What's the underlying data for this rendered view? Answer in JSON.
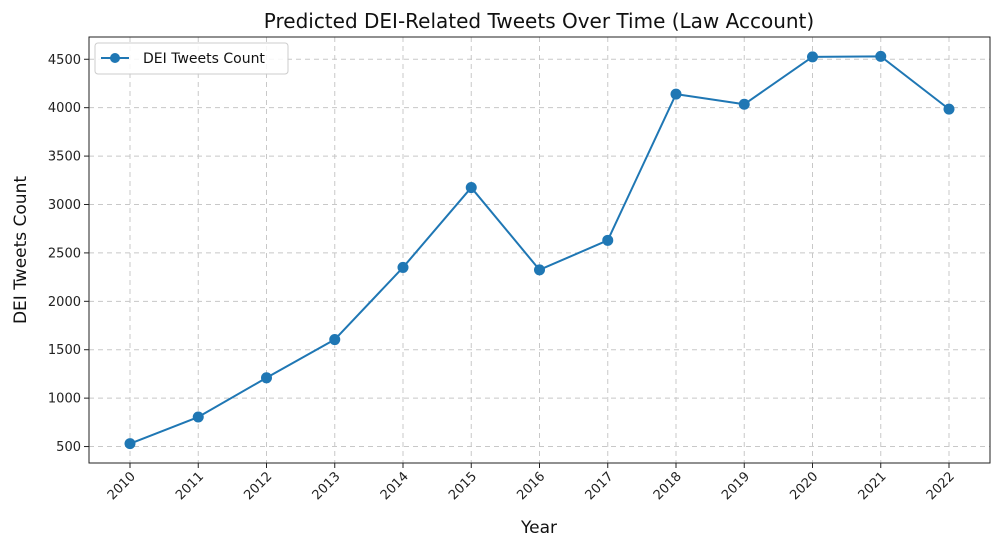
{
  "chart_data": {
    "type": "line",
    "title": "Predicted DEI-Related Tweets Over Time (Law Account)",
    "xlabel": "Year",
    "ylabel": "DEI Tweets Count",
    "categories": [
      "2010",
      "2011",
      "2012",
      "2013",
      "2014",
      "2015",
      "2016",
      "2017",
      "2018",
      "2019",
      "2020",
      "2021",
      "2022"
    ],
    "yticks": [
      500,
      1000,
      1500,
      2000,
      2500,
      3000,
      3500,
      4000,
      4500
    ],
    "ylim": [
      330,
      4730
    ],
    "grid": true,
    "legend_position": "top-left",
    "series": [
      {
        "name": "DEI Tweets Count",
        "color": "#1f77b4",
        "marker": "circle",
        "values": [
          530,
          805,
          1210,
          1605,
          2350,
          3175,
          2325,
          2630,
          4140,
          4035,
          4525,
          4530,
          3985
        ]
      }
    ]
  }
}
